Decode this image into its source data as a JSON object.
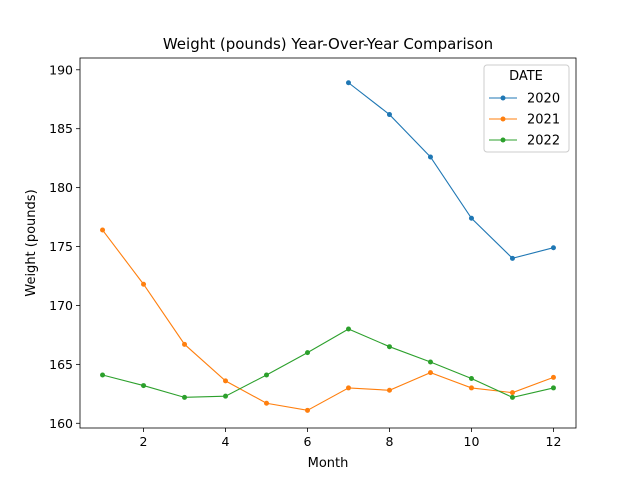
{
  "chart_data": {
    "type": "line",
    "title": "Weight (pounds) Year-Over-Year Comparison",
    "xlabel": "Month",
    "ylabel": "Weight (pounds)",
    "xlim": [
      0.45,
      12.55
    ],
    "ylim": [
      159.6,
      191.0
    ],
    "x_ticks": [
      2,
      4,
      6,
      8,
      10,
      12
    ],
    "y_ticks": [
      160,
      165,
      170,
      175,
      180,
      185,
      190
    ],
    "grid": false,
    "legend": {
      "title": "DATE",
      "placement": "top-right"
    },
    "series": [
      {
        "name": "2020",
        "color": "#1f77b4",
        "x": [
          7,
          8,
          9,
          10,
          11,
          12
        ],
        "values": [
          188.9,
          186.2,
          182.6,
          177.4,
          174.0,
          174.9
        ]
      },
      {
        "name": "2021",
        "color": "#ff7f0e",
        "x": [
          1,
          2,
          3,
          4,
          5,
          6,
          7,
          8,
          9,
          10,
          11,
          12
        ],
        "values": [
          176.4,
          171.8,
          166.7,
          163.6,
          161.7,
          161.1,
          163.0,
          162.8,
          164.3,
          163.0,
          162.6,
          163.9
        ]
      },
      {
        "name": "2022",
        "color": "#2ca02c",
        "x": [
          1,
          2,
          3,
          4,
          5,
          6,
          7,
          8,
          9,
          10,
          11,
          12
        ],
        "values": [
          164.1,
          163.2,
          162.2,
          162.3,
          164.1,
          166.0,
          168.0,
          166.5,
          165.2,
          163.8,
          162.2,
          163.0
        ]
      }
    ]
  }
}
